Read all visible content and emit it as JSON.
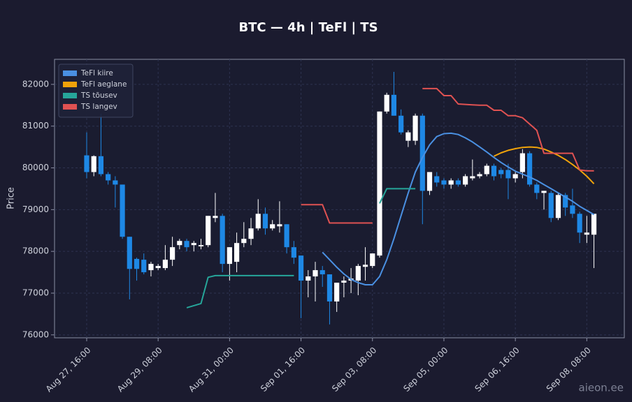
{
  "chart_data": {
    "type": "candlestick",
    "title": "BTC — 4h  |  TeFl  |  TS",
    "y_label": "Price",
    "watermark": "aieon.ee",
    "up_color": "#ffffff",
    "down_color": "#1e88e5",
    "grid": true,
    "legend": "upper left",
    "xlim": [
      "Aug 26, 22:00",
      "Sep 09, 05:00"
    ],
    "xticks": [
      "Aug 27, 16:00",
      "Aug 29, 08:00",
      "Aug 31, 00:00",
      "Sep 01, 16:00",
      "Sep 03, 08:00",
      "Sep 05, 00:00",
      "Sep 06, 16:00",
      "Sep 08, 08:00"
    ],
    "ylim": [
      75930,
      82600
    ],
    "yticks": [
      76000,
      77000,
      78000,
      79000,
      80000,
      81000,
      82000
    ],
    "x": [
      "Aug 27, 16:00",
      "Aug 27, 20:00",
      "Aug 28, 00:00",
      "Aug 28, 04:00",
      "Aug 28, 08:00",
      "Aug 28, 12:00",
      "Aug 28, 16:00",
      "Aug 28, 20:00",
      "Aug 29, 00:00",
      "Aug 29, 04:00",
      "Aug 29, 08:00",
      "Aug 29, 12:00",
      "Aug 29, 16:00",
      "Aug 29, 20:00",
      "Aug 30, 00:00",
      "Aug 30, 04:00",
      "Aug 30, 08:00",
      "Aug 30, 12:00",
      "Aug 30, 16:00",
      "Aug 30, 20:00",
      "Aug 31, 00:00",
      "Aug 31, 04:00",
      "Aug 31, 08:00",
      "Aug 31, 12:00",
      "Aug 31, 16:00",
      "Aug 31, 20:00",
      "Sep 01, 00:00",
      "Sep 01, 04:00",
      "Sep 01, 08:00",
      "Sep 01, 12:00",
      "Sep 01, 16:00",
      "Sep 01, 20:00",
      "Sep 02, 00:00",
      "Sep 02, 04:00",
      "Sep 02, 08:00",
      "Sep 02, 12:00",
      "Sep 02, 16:00",
      "Sep 02, 20:00",
      "Sep 03, 00:00",
      "Sep 03, 04:00",
      "Sep 03, 08:00",
      "Sep 03, 12:00",
      "Sep 03, 16:00",
      "Sep 03, 20:00",
      "Sep 04, 00:00",
      "Sep 04, 04:00",
      "Sep 04, 08:00",
      "Sep 04, 12:00",
      "Sep 04, 16:00",
      "Sep 04, 20:00",
      "Sep 05, 00:00",
      "Sep 05, 04:00",
      "Sep 05, 08:00",
      "Sep 05, 12:00",
      "Sep 05, 16:00",
      "Sep 05, 20:00",
      "Sep 06, 00:00",
      "Sep 06, 04:00",
      "Sep 06, 08:00",
      "Sep 06, 12:00",
      "Sep 06, 16:00",
      "Sep 06, 20:00",
      "Sep 07, 00:00",
      "Sep 07, 04:00",
      "Sep 07, 08:00",
      "Sep 07, 12:00",
      "Sep 07, 16:00",
      "Sep 07, 20:00",
      "Sep 08, 00:00",
      "Sep 08, 04:00",
      "Sep 08, 08:00",
      "Sep 08, 12:00"
    ],
    "open": [
      80300,
      79900,
      80280,
      79850,
      79700,
      79600,
      78350,
      77820,
      77800,
      77550,
      77600,
      77600,
      77800,
      78150,
      78250,
      78150,
      78120,
      78150,
      78800,
      78850,
      77700,
      77750,
      78200,
      78300,
      78550,
      78900,
      78550,
      78600,
      78650,
      78100,
      77900,
      77300,
      77400,
      77550,
      77450,
      76800,
      77250,
      77300,
      77300,
      77630,
      77650,
      77900,
      81350,
      81750,
      81250,
      80650,
      80650,
      81250,
      79450,
      79800,
      79700,
      79600,
      79700,
      79600,
      79750,
      79800,
      79850,
      80050,
      79950,
      79950,
      79750,
      79900,
      80350,
      79600,
      79400,
      79400,
      78800,
      79350,
      79100,
      78900,
      78400,
      78400
    ],
    "high": [
      80850,
      80300,
      81300,
      79900,
      79800,
      79600,
      78350,
      77850,
      77950,
      77750,
      77700,
      78150,
      78350,
      78300,
      78300,
      78250,
      78300,
      78850,
      79400,
      78900,
      78100,
      78450,
      78700,
      78800,
      79250,
      79050,
      78750,
      79200,
      78650,
      78250,
      77900,
      77550,
      77750,
      77650,
      77450,
      77250,
      77400,
      77600,
      77700,
      78100,
      77950,
      81350,
      81800,
      82300,
      81400,
      80900,
      81300,
      81300,
      79900,
      79900,
      79750,
      79750,
      79750,
      79850,
      80200,
      79900,
      80100,
      80100,
      80000,
      80100,
      79900,
      80450,
      80400,
      79650,
      79450,
      79450,
      79400,
      79400,
      79500,
      78950,
      78850,
      78900
    ],
    "low": [
      79750,
      79800,
      79800,
      79600,
      79050,
      78300,
      76850,
      77300,
      77450,
      77400,
      77550,
      77550,
      77650,
      78050,
      78000,
      78000,
      78050,
      78100,
      78700,
      77500,
      77300,
      77500,
      78100,
      78150,
      78500,
      78400,
      78500,
      78450,
      77950,
      77700,
      76400,
      76900,
      76800,
      77150,
      76250,
      76550,
      76900,
      77000,
      76950,
      77300,
      77600,
      77850,
      81300,
      81250,
      80800,
      80500,
      80550,
      78650,
      79350,
      79550,
      79500,
      79500,
      79550,
      79550,
      79700,
      79750,
      79800,
      79700,
      79750,
      79250,
      79650,
      79750,
      79550,
      79250,
      79000,
      78700,
      78750,
      78850,
      78800,
      78200,
      78200,
      77600
    ],
    "close": [
      79900,
      80280,
      79850,
      79700,
      79600,
      78350,
      77580,
      77580,
      77500,
      77700,
      77650,
      77800,
      78100,
      78250,
      78100,
      78200,
      78150,
      78850,
      78850,
      77700,
      78100,
      78200,
      78300,
      78550,
      78900,
      78550,
      78650,
      78650,
      78100,
      77850,
      77300,
      77400,
      77550,
      77450,
      76800,
      77250,
      77300,
      77350,
      77650,
      77680,
      77950,
      81350,
      81750,
      81250,
      80850,
      80850,
      81250,
      79450,
      79900,
      79650,
      79600,
      79700,
      79600,
      79800,
      79800,
      79850,
      80050,
      79800,
      79850,
      79750,
      79850,
      80350,
      79600,
      79400,
      79450,
      78800,
      79350,
      79050,
      78900,
      78450,
      78450,
      78900
    ],
    "series": [
      {
        "name": "TeFl kiire",
        "color": "#4a90e2",
        "values": [
          null,
          null,
          null,
          null,
          null,
          null,
          null,
          null,
          null,
          null,
          null,
          null,
          null,
          null,
          null,
          null,
          null,
          null,
          null,
          null,
          null,
          null,
          null,
          null,
          null,
          null,
          null,
          null,
          null,
          null,
          null,
          null,
          null,
          77980,
          77800,
          77620,
          77460,
          77330,
          77250,
          77200,
          77200,
          77400,
          77800,
          78300,
          78850,
          79400,
          79900,
          80250,
          80550,
          80750,
          80820,
          80830,
          80800,
          80720,
          80620,
          80500,
          80380,
          80250,
          80130,
          80020,
          79920,
          79850,
          79780,
          79700,
          79600,
          79500,
          79400,
          79300,
          79200,
          79080,
          78980,
          78880
        ]
      },
      {
        "name": "TeFl aeglane",
        "color": "#f0a30a",
        "values": [
          null,
          null,
          null,
          null,
          null,
          null,
          null,
          null,
          null,
          null,
          null,
          null,
          null,
          null,
          null,
          null,
          null,
          null,
          null,
          null,
          null,
          null,
          null,
          null,
          null,
          null,
          null,
          null,
          null,
          null,
          null,
          null,
          null,
          null,
          null,
          null,
          null,
          null,
          null,
          null,
          null,
          null,
          null,
          null,
          null,
          null,
          null,
          null,
          null,
          null,
          null,
          null,
          null,
          null,
          null,
          null,
          null,
          80280,
          80360,
          80420,
          80460,
          80490,
          80500,
          80490,
          80450,
          80380,
          80300,
          80200,
          80080,
          79950,
          79800,
          79620
        ]
      },
      {
        "name": "TS tõusev",
        "color": "#26a69a",
        "values": [
          null,
          null,
          null,
          null,
          null,
          null,
          null,
          null,
          null,
          null,
          null,
          null,
          null,
          null,
          76650,
          76700,
          76750,
          77380,
          77420,
          77420,
          77420,
          77420,
          77420,
          77420,
          77420,
          77420,
          77420,
          77420,
          77420,
          77420,
          null,
          null,
          null,
          null,
          null,
          null,
          null,
          null,
          null,
          null,
          null,
          79150,
          79500,
          79500,
          79500,
          79500,
          79500,
          null,
          null,
          null,
          null,
          null,
          null,
          null,
          null,
          null,
          null,
          null,
          null,
          null,
          null,
          null,
          null,
          null,
          null,
          null,
          null,
          null,
          null,
          null,
          null,
          null
        ]
      },
      {
        "name": "TS langev",
        "color": "#e05252",
        "values": [
          null,
          null,
          null,
          null,
          null,
          null,
          null,
          null,
          null,
          null,
          null,
          null,
          null,
          null,
          null,
          null,
          null,
          null,
          null,
          null,
          null,
          null,
          null,
          null,
          null,
          null,
          null,
          null,
          null,
          null,
          79120,
          79120,
          79120,
          79120,
          78680,
          78680,
          78680,
          78680,
          78680,
          78680,
          78680,
          null,
          null,
          null,
          null,
          null,
          null,
          81900,
          81900,
          81900,
          81730,
          81730,
          81530,
          81520,
          81510,
          81500,
          81500,
          81380,
          81380,
          81250,
          81250,
          81200,
          81050,
          80900,
          80350,
          80350,
          80350,
          80350,
          80350,
          79950,
          79930,
          79930
        ]
      }
    ]
  }
}
